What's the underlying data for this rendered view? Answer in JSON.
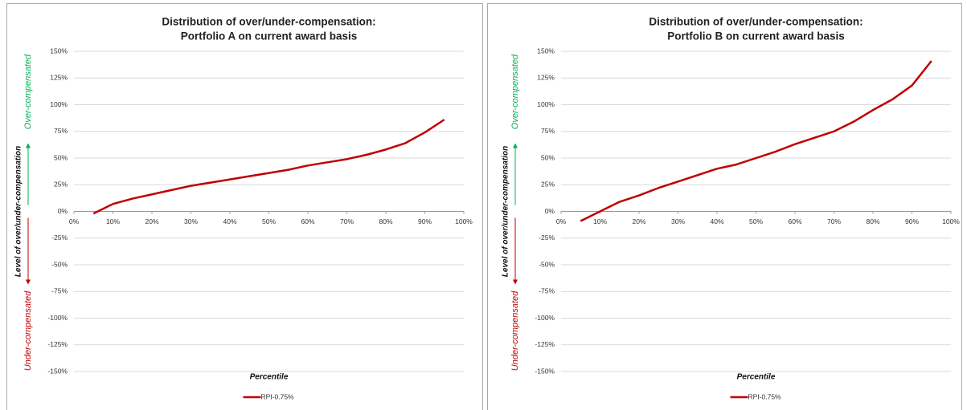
{
  "chart_data": [
    {
      "type": "line",
      "title": "Distribution of over/under-compensation:",
      "subtitle": "Portfolio A on current award basis",
      "x_label": "Percentile",
      "y_label": "Level of over/under-compensation",
      "annotation_top": "Over-compensated",
      "annotation_bottom": "Under-compensated",
      "x": [
        5,
        10,
        15,
        20,
        25,
        30,
        35,
        40,
        45,
        50,
        55,
        60,
        65,
        70,
        75,
        80,
        85,
        90,
        95
      ],
      "series": [
        {
          "name": "RPI-0.75%",
          "color": "#c00000",
          "values": [
            -2,
            7,
            12,
            16,
            20,
            24,
            27,
            30,
            33,
            36,
            39,
            43,
            46,
            49,
            53,
            58,
            64,
            74,
            86
          ]
        }
      ],
      "xlim": [
        0,
        100
      ],
      "xticks": [
        {
          "value": 0,
          "label": "0%"
        },
        {
          "value": 10,
          "label": "10%"
        },
        {
          "value": 20,
          "label": "20%"
        },
        {
          "value": 30,
          "label": "30%"
        },
        {
          "value": 40,
          "label": "40%"
        },
        {
          "value": 50,
          "label": "50%"
        },
        {
          "value": 60,
          "label": "60%"
        },
        {
          "value": 70,
          "label": "70%"
        },
        {
          "value": 80,
          "label": "80%"
        },
        {
          "value": 90,
          "label": "90%"
        },
        {
          "value": 100,
          "label": "100%"
        }
      ],
      "ylim": [
        -150,
        150
      ],
      "yticks": [
        {
          "value": 150,
          "label": "150%"
        },
        {
          "value": 125,
          "label": "125%"
        },
        {
          "value": 100,
          "label": "100%"
        },
        {
          "value": 75,
          "label": "75%"
        },
        {
          "value": 50,
          "label": "50%"
        },
        {
          "value": 25,
          "label": "25%"
        },
        {
          "value": 0,
          "label": "0%"
        },
        {
          "value": -25,
          "label": "-25%"
        },
        {
          "value": -50,
          "label": "-50%"
        },
        {
          "value": -75,
          "label": "-75%"
        },
        {
          "value": -100,
          "label": "-100%"
        },
        {
          "value": -125,
          "label": "-125%"
        },
        {
          "value": -150,
          "label": "-150%"
        }
      ],
      "grid": true,
      "legend": "bottom"
    },
    {
      "type": "line",
      "title": "Distribution of over/under-compensation:",
      "subtitle": "Portfolio B on current award basis",
      "x_label": "Percentile",
      "y_label": "Level of over/under-compensation",
      "annotation_top": "Over-compensated",
      "annotation_bottom": "Under-compensated",
      "x": [
        5,
        10,
        15,
        20,
        25,
        30,
        35,
        40,
        45,
        50,
        55,
        60,
        65,
        70,
        75,
        80,
        85,
        90,
        95
      ],
      "series": [
        {
          "name": "RPI-0.75%",
          "color": "#c00000",
          "values": [
            -9,
            0,
            9,
            15,
            22,
            28,
            34,
            40,
            44,
            50,
            56,
            63,
            69,
            75,
            84,
            95,
            105,
            118,
            141
          ]
        }
      ],
      "xlim": [
        0,
        100
      ],
      "xticks": [
        {
          "value": 0,
          "label": "0%"
        },
        {
          "value": 10,
          "label": "10%"
        },
        {
          "value": 20,
          "label": "20%"
        },
        {
          "value": 30,
          "label": "30%"
        },
        {
          "value": 40,
          "label": "40%"
        },
        {
          "value": 50,
          "label": "50%"
        },
        {
          "value": 60,
          "label": "60%"
        },
        {
          "value": 70,
          "label": "70%"
        },
        {
          "value": 80,
          "label": "80%"
        },
        {
          "value": 90,
          "label": "90%"
        },
        {
          "value": 100,
          "label": "100%"
        }
      ],
      "ylim": [
        -150,
        150
      ],
      "yticks": [
        {
          "value": 150,
          "label": "150%"
        },
        {
          "value": 125,
          "label": "125%"
        },
        {
          "value": 100,
          "label": "100%"
        },
        {
          "value": 75,
          "label": "75%"
        },
        {
          "value": 50,
          "label": "50%"
        },
        {
          "value": 25,
          "label": "25%"
        },
        {
          "value": 0,
          "label": "0%"
        },
        {
          "value": -25,
          "label": "-25%"
        },
        {
          "value": -50,
          "label": "-50%"
        },
        {
          "value": -75,
          "label": "-75%"
        },
        {
          "value": -100,
          "label": "-100%"
        },
        {
          "value": -125,
          "label": "-125%"
        },
        {
          "value": -150,
          "label": "-150%"
        }
      ],
      "grid": true,
      "legend": "bottom"
    }
  ]
}
